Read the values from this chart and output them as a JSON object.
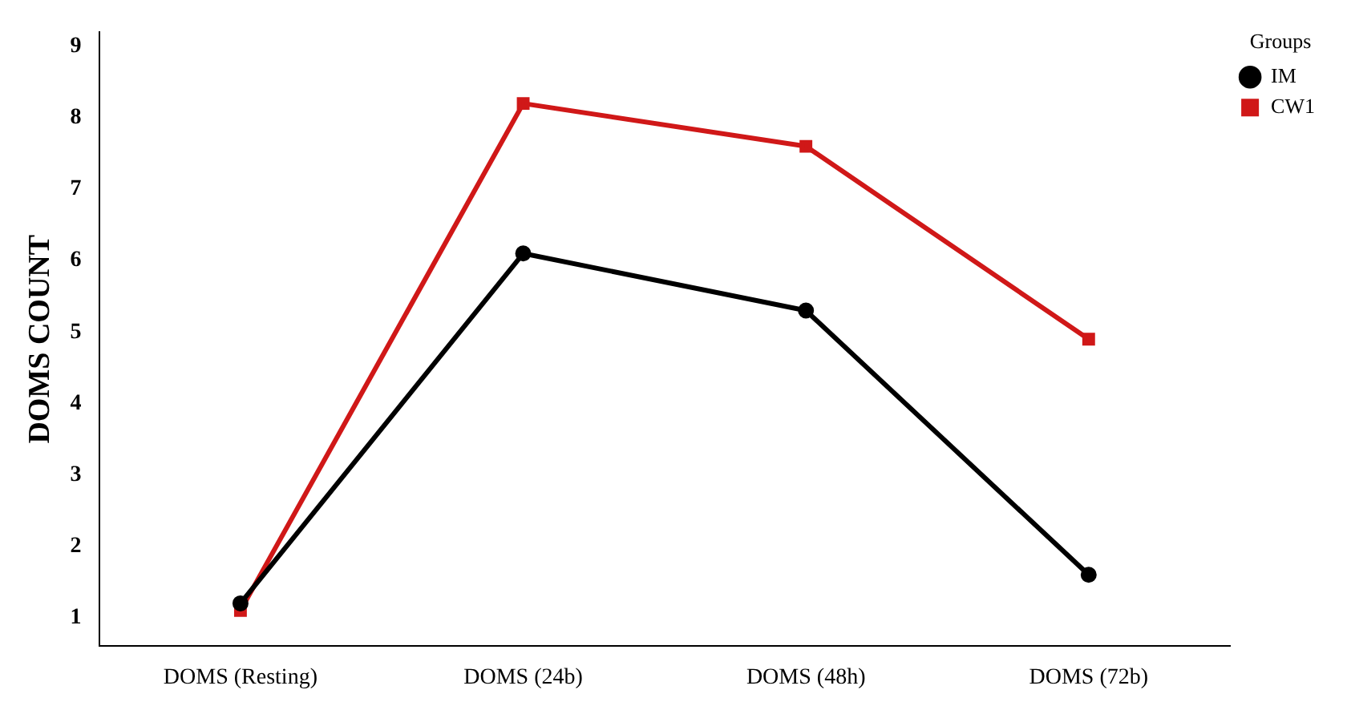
{
  "chart_data": {
    "type": "line",
    "ylabel": "DOMS COUNT",
    "legend_title": "Groups",
    "legend": "top right",
    "grid": false,
    "categories": [
      "DOMS (Resting)",
      "DOMS (24b)",
      "DOMS (48h)",
      "DOMS (72b)"
    ],
    "ylim": [
      0.6,
      9.2
    ],
    "yticks": [
      1,
      2,
      3,
      4,
      5,
      6,
      7,
      8,
      9
    ],
    "line_style": "solid",
    "series": [
      {
        "name": "IM",
        "color": "#000000",
        "marker": "circle",
        "values": [
          1.2,
          6.1,
          5.3,
          1.6
        ]
      },
      {
        "name": "CW1",
        "color": "#d01818",
        "marker": "square",
        "values": [
          1.1,
          8.2,
          7.6,
          4.9
        ]
      }
    ]
  }
}
